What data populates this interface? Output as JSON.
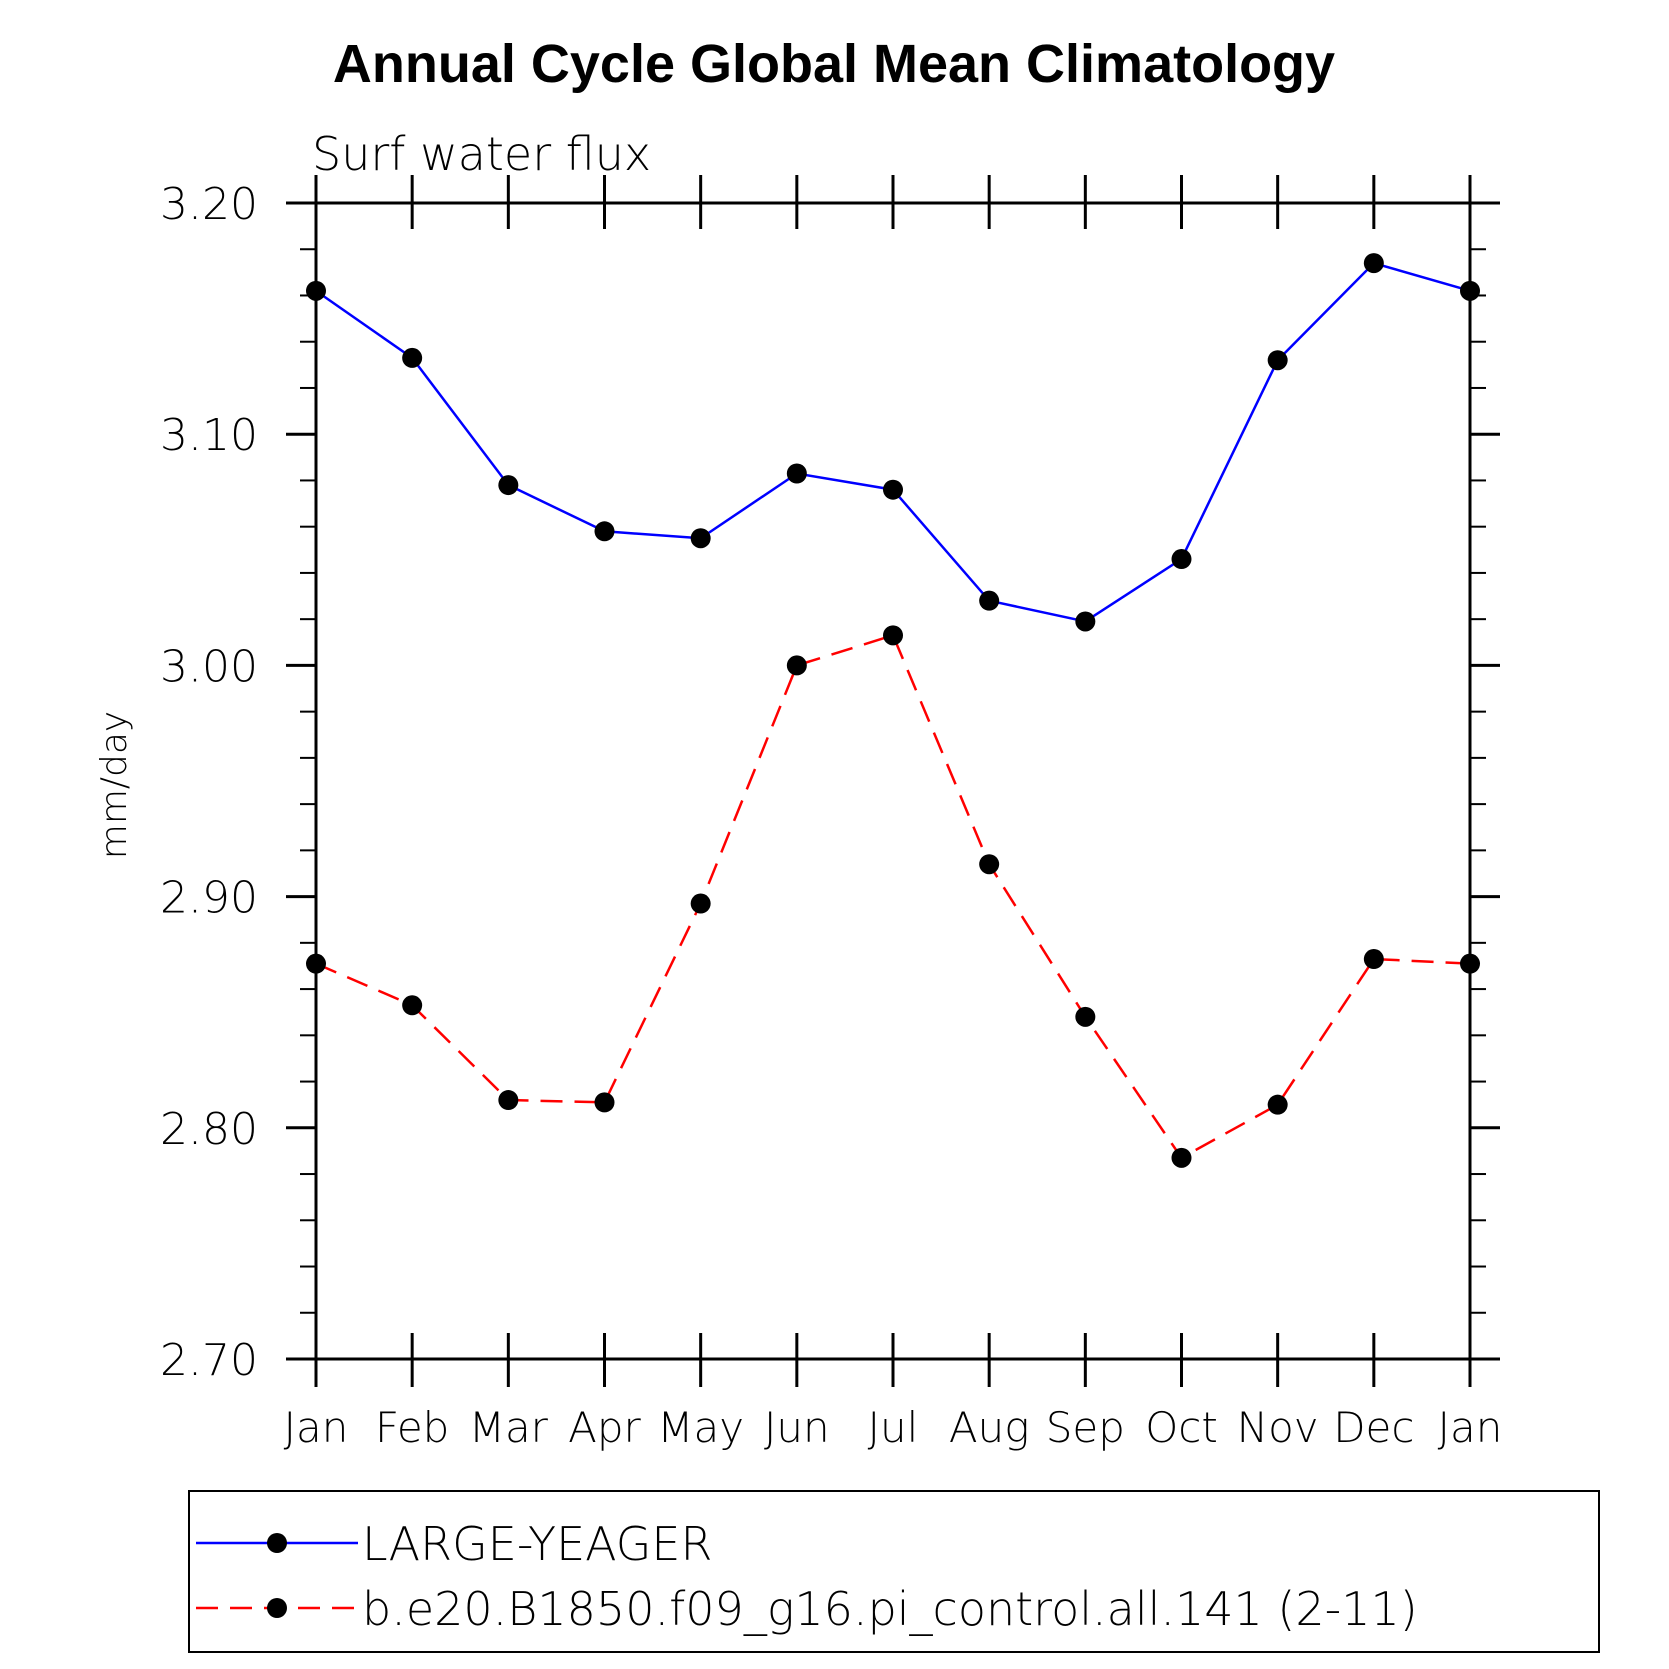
{
  "chart_data": {
    "type": "line",
    "title": "Annual Cycle Global Mean Climatology",
    "subtitle": "Surf water flux",
    "ylabel": "mm/day",
    "xlabel": "",
    "categories": [
      "Jan",
      "Feb",
      "Mar",
      "Apr",
      "May",
      "Jun",
      "Jul",
      "Aug",
      "Sep",
      "Oct",
      "Nov",
      "Dec",
      "Jan"
    ],
    "ylim": [
      2.7,
      3.2
    ],
    "yticks": [
      "2.70",
      "2.80",
      "2.90",
      "3.00",
      "3.10",
      "3.20"
    ],
    "series": [
      {
        "name": "LARGE-YEAGER",
        "color": "#0000ff",
        "style": "solid",
        "marker": "filled-circle",
        "values": [
          3.162,
          3.133,
          3.078,
          3.058,
          3.055,
          3.083,
          3.076,
          3.028,
          3.019,
          3.046,
          3.132,
          3.174,
          3.162
        ]
      },
      {
        "name": "b.e20.B1850.f09_g16.pi_control.all.141 (2-11)",
        "color": "#ff0000",
        "style": "dashed",
        "marker": "filled-circle",
        "values": [
          2.871,
          2.853,
          2.812,
          2.811,
          2.897,
          3.0,
          3.013,
          2.914,
          2.848,
          2.787,
          2.81,
          2.873,
          2.871
        ]
      }
    ],
    "grid": false,
    "legend_position": "bottom"
  }
}
